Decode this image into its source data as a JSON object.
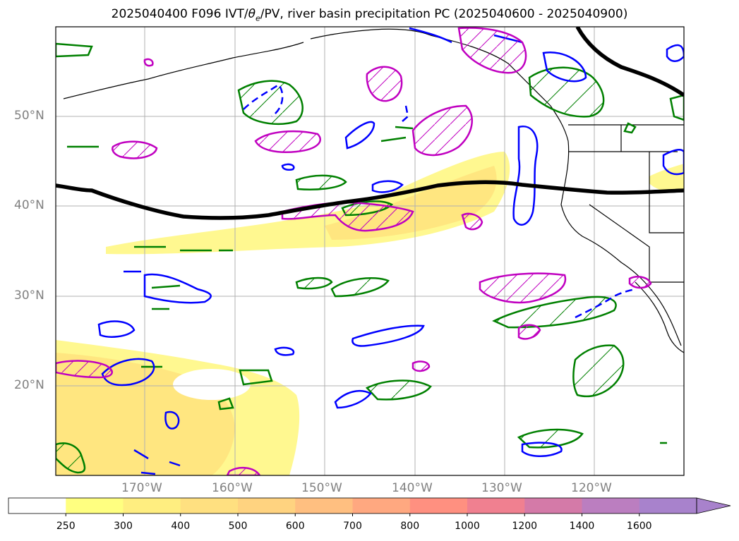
{
  "title": "2025040400 F096 IVT/θe/PV, river basin precipitation PC (2025040600 - 2025040900)",
  "title_parts": {
    "prefix": "2025040400 F096 IVT/",
    "theta": "θ",
    "theta_sub": "e",
    "suffix": "/PV, river basin precipitation PC (2025040600 - 2025040900)"
  },
  "map": {
    "extent": {
      "lon_min": -180,
      "lon_max": -110,
      "lat_min": 10,
      "lat_max": 60
    },
    "gridlines": {
      "lons": [
        -170,
        -160,
        -150,
        -140,
        -130,
        -120
      ],
      "lats": [
        20,
        30,
        40,
        50
      ]
    }
  },
  "lat_labels": [
    "50°N",
    "40°N",
    "30°N",
    "20°N"
  ],
  "lon_labels": [
    "170°W",
    "160°W",
    "150°W",
    "140°W",
    "130°W",
    "120°W"
  ],
  "colorbar": {
    "ticks": [
      "250",
      "300",
      "400",
      "500",
      "600",
      "700",
      "800",
      "1000",
      "1200",
      "1400",
      "1600"
    ],
    "colors": [
      "#ffffff",
      "#ffff80",
      "#ffee80",
      "#ffe080",
      "#ffd380",
      "#ffbf80",
      "#ffa880",
      "#ff9080",
      "#f08090",
      "#d47aa8",
      "#bb7ec0",
      "#a882cc"
    ],
    "extend": "max"
  },
  "colors": {
    "ivt_light": "#fff890",
    "ivt_mid": "#ffe680",
    "pv_green": "#008000",
    "theta_blue": "#0000ff",
    "precip_magenta": "#c000c0",
    "jet_black": "#000000"
  }
}
